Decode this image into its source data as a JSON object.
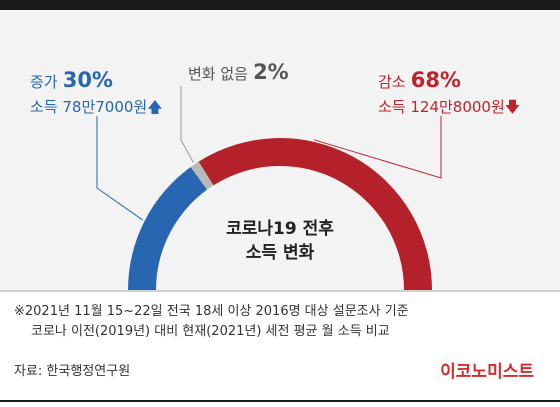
{
  "chart_data": {
    "type": "pie",
    "title": "코로나19 전후\n소득 변화",
    "slices": [
      {
        "name": "증가",
        "value": 30,
        "value_label": "30%",
        "detail": "소득 78만7000원",
        "arrow": "up",
        "color": "#2866b2"
      },
      {
        "name": "변화 없음",
        "value": 2,
        "value_label": "2%",
        "color": "#b9b9b9"
      },
      {
        "name": "감소",
        "value": 68,
        "value_label": "68%",
        "detail": "소득 124만8000원",
        "arrow": "down",
        "color": "#b5212b"
      }
    ]
  },
  "center": {
    "line1": "코로나19 전후",
    "line2": "소득 변화"
  },
  "notes": {
    "line1": "※2021년 11월 15~22일 전국 18세 이상 2016명 대상 설문조사 기준",
    "line2": "코로나 이전(2019년) 대비 현재(2021년) 세전 평균 월 소득 비교"
  },
  "source": "자료: 한국행정연구원",
  "brand": "이코노미스트"
}
